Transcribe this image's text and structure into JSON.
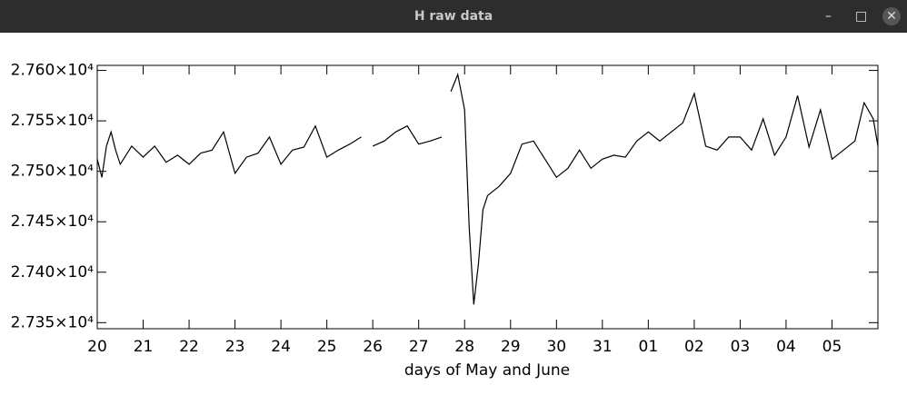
{
  "window": {
    "title": "H raw data"
  },
  "chart_data": {
    "type": "line",
    "x_label": "days of May and June",
    "x": [
      20.0,
      20.1,
      20.2,
      20.3,
      20.4,
      20.5,
      20.75,
      21.0,
      21.25,
      21.5,
      21.75,
      22.0,
      22.25,
      22.5,
      22.75,
      23.0,
      23.25,
      23.5,
      23.75,
      24.0,
      24.25,
      24.5,
      24.75,
      25.0,
      25.25,
      25.5,
      25.75,
      25.9,
      26.0,
      26.25,
      26.5,
      26.75,
      27.0,
      27.25,
      27.5,
      27.6,
      27.7,
      27.85,
      28.0,
      28.1,
      28.2,
      28.3,
      28.4,
      28.5,
      28.75,
      29.0,
      29.25,
      29.5,
      29.75,
      30.0,
      30.25,
      30.5,
      30.75,
      31.0,
      31.25,
      31.5,
      31.75,
      32.0,
      32.25,
      32.5,
      32.75,
      33.0,
      33.25,
      33.5,
      33.75,
      34.0,
      34.25,
      34.5,
      34.75,
      35.0,
      35.25,
      35.5,
      35.75,
      36.0,
      36.25,
      36.5,
      36.7,
      36.9,
      37.0
    ],
    "series": [
      {
        "name": "H",
        "color": "#000000",
        "values": [
          27512,
          27494,
          27525,
          27539,
          27521,
          27507,
          27525,
          27514,
          27525,
          27509,
          27516,
          27507,
          27518,
          27521,
          27539,
          27498,
          27514,
          27518,
          27534,
          27507,
          27521,
          27524,
          27545,
          27514,
          27521,
          27527,
          27534,
          null,
          27525,
          27530,
          27539,
          27545,
          27527,
          27530,
          27534,
          null,
          27579,
          27596,
          27561,
          27444,
          27368,
          27408,
          27462,
          27476,
          27485,
          27498,
          27527,
          27530,
          27512,
          27494,
          27503,
          27521,
          27503,
          27512,
          27516,
          27514,
          27530,
          27539,
          27530,
          27539,
          27548,
          27577,
          27525,
          27521,
          27534,
          27534,
          27521,
          27552,
          27516,
          27534,
          27575,
          27524,
          27561,
          27512,
          27521,
          27530,
          27568,
          27552,
          27525
        ]
      }
    ],
    "xlim": [
      20,
      37
    ],
    "xticks": [
      20,
      21,
      22,
      23,
      24,
      25,
      26,
      27,
      28,
      29,
      30,
      31,
      {
        "value": 32,
        "label": "01"
      },
      {
        "value": 33,
        "label": "02"
      },
      {
        "value": 34,
        "label": "03"
      },
      {
        "value": 35,
        "label": "04"
      },
      {
        "value": 36,
        "label": "05"
      }
    ],
    "ylim": [
      27344,
      27605
    ],
    "yticks": [
      {
        "value": 27350,
        "label": "2.735×10⁴"
      },
      {
        "value": 27400,
        "label": "2.740×10⁴"
      },
      {
        "value": 27450,
        "label": "2.745×10⁴"
      },
      {
        "value": 27500,
        "label": "2.750×10⁴"
      },
      {
        "value": 27550,
        "label": "2.755×10⁴"
      },
      {
        "value": 27600,
        "label": "2.760×10⁴"
      }
    ],
    "grid": false
  }
}
